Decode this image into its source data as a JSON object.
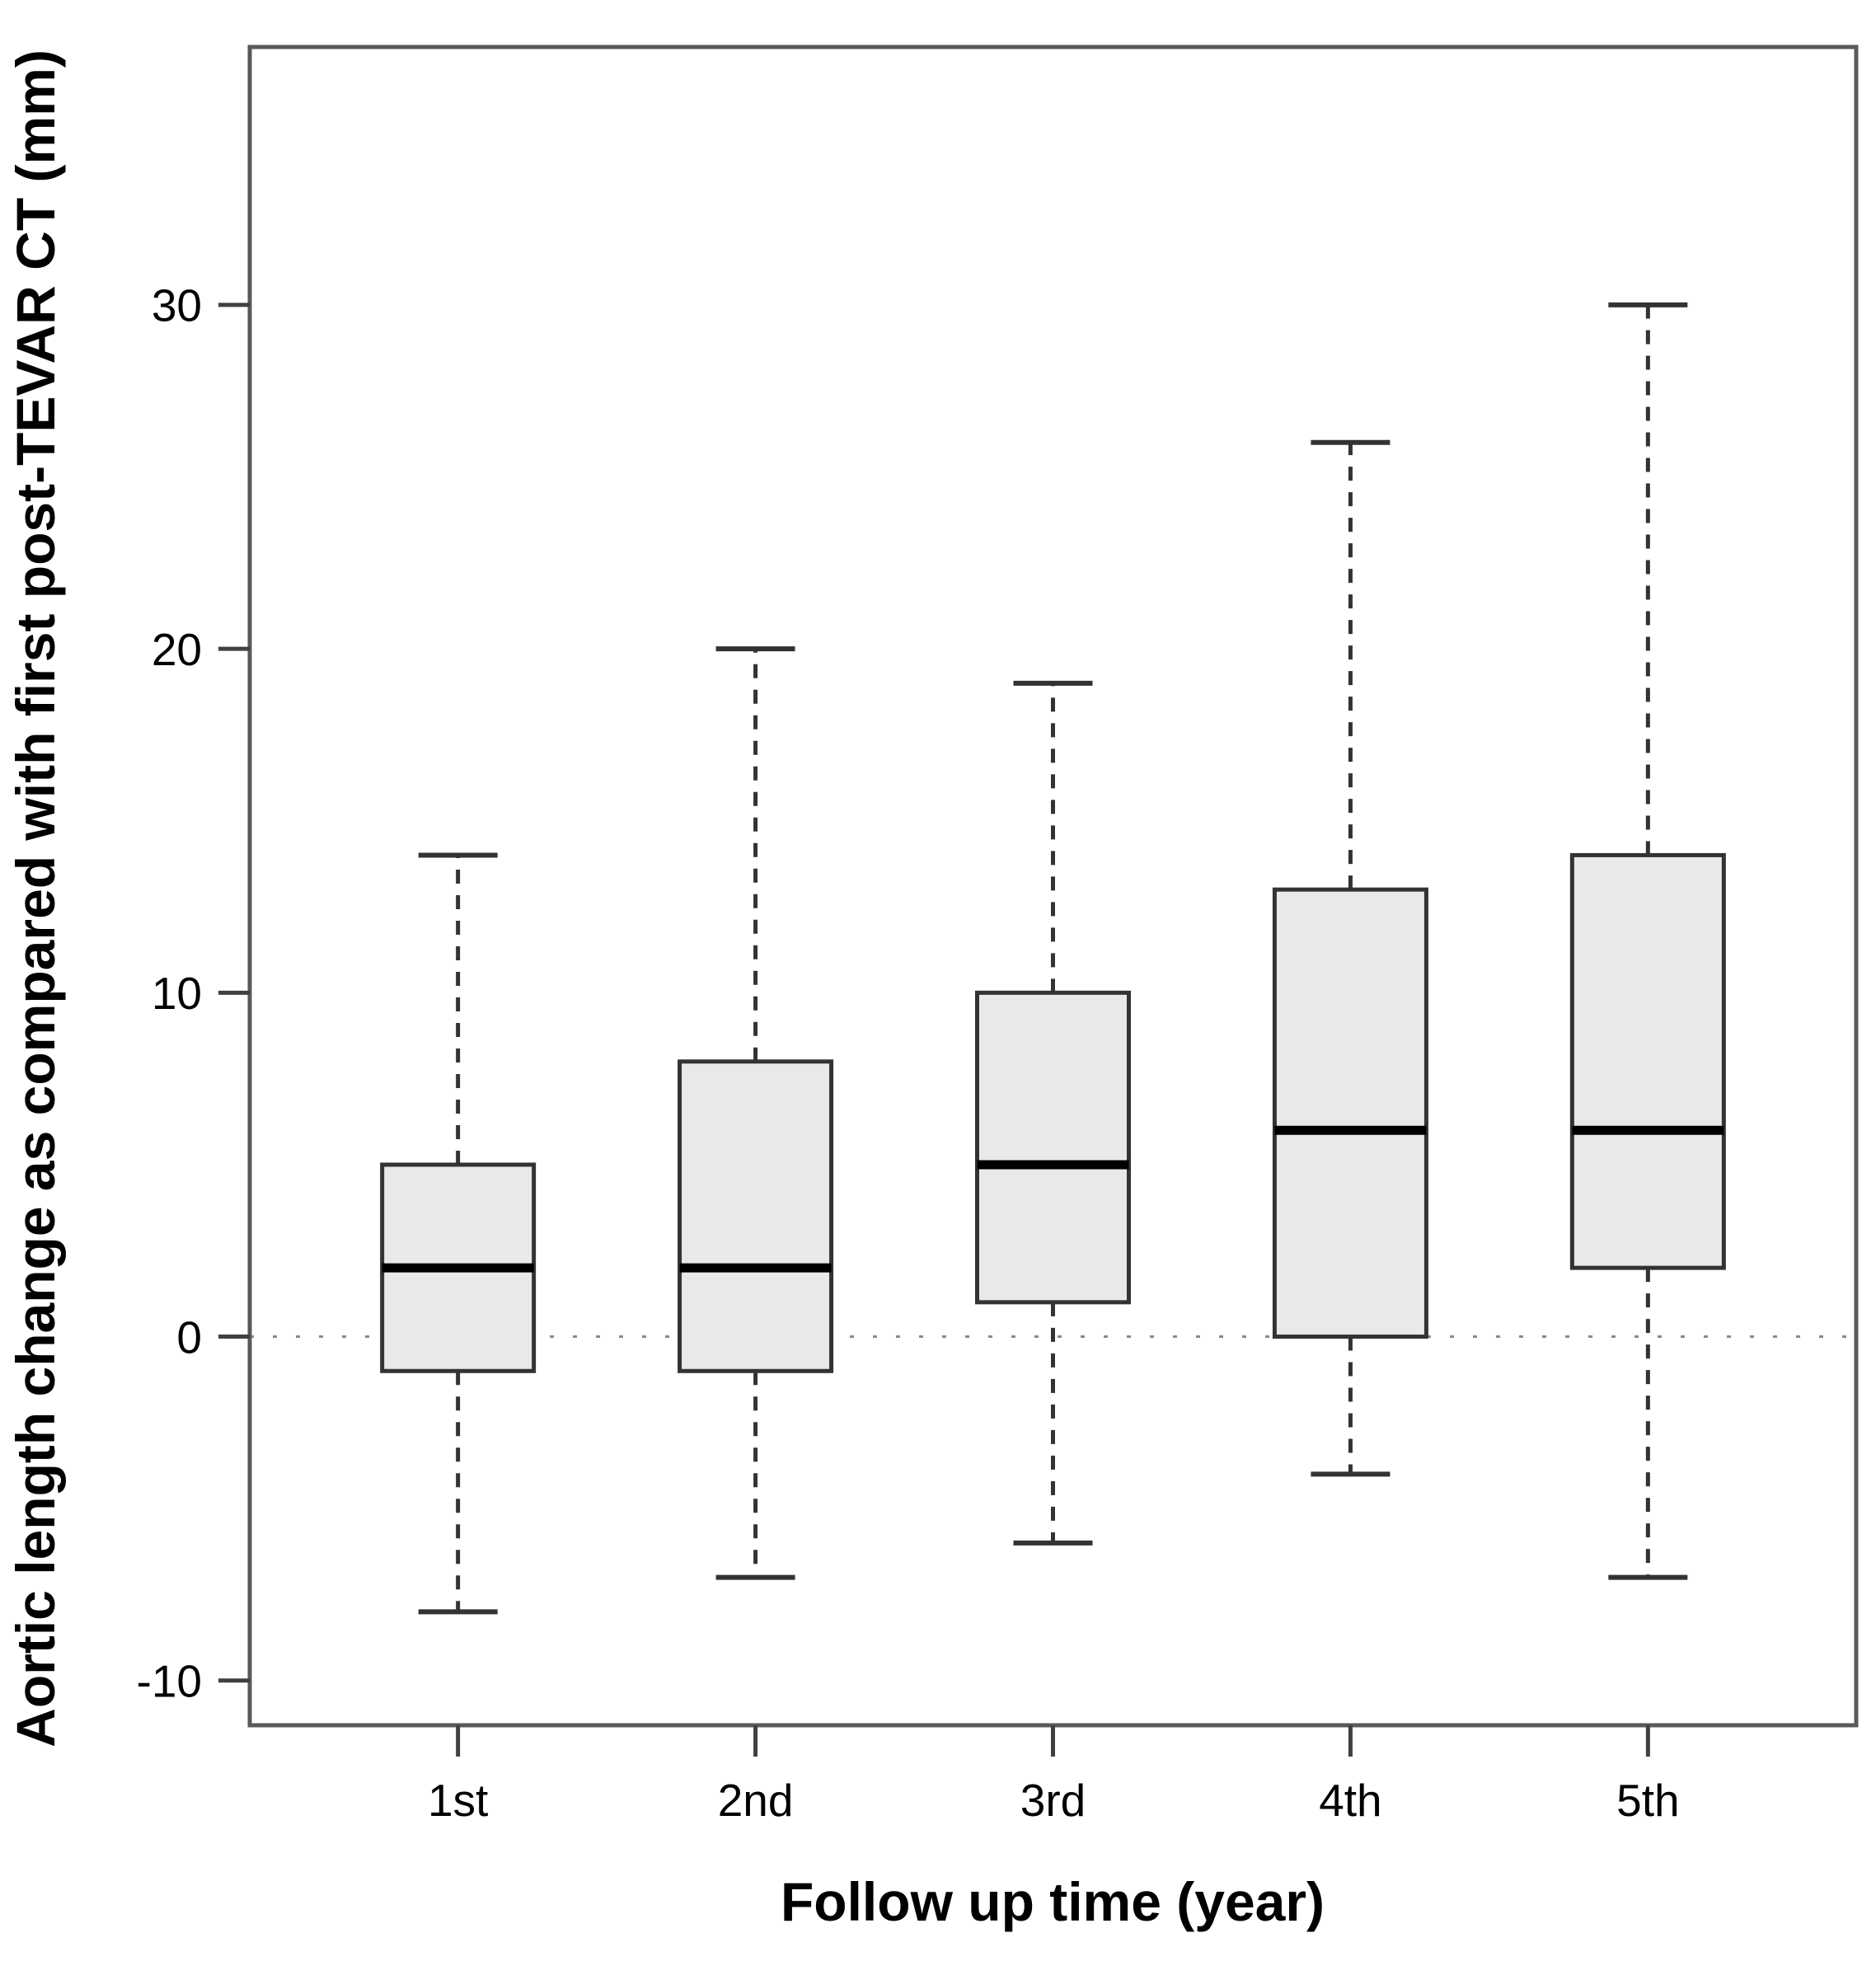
{
  "chart_data": {
    "type": "boxplot",
    "title": "",
    "xlabel": "Follow up time (year)",
    "ylabel": "Aortic length change as compared with first post-TEVAR CT (mm)",
    "categories": [
      "1st",
      "2nd",
      "3rd",
      "4th",
      "5th"
    ],
    "series": [
      {
        "name": "1st",
        "whisker_low": -8,
        "q1": -1,
        "median": 2,
        "q3": 5,
        "whisker_high": 14
      },
      {
        "name": "2nd",
        "whisker_low": -7,
        "q1": -1,
        "median": 2,
        "q3": 8,
        "whisker_high": 20
      },
      {
        "name": "3rd",
        "whisker_low": -6,
        "q1": 1,
        "median": 5,
        "q3": 10,
        "whisker_high": 19
      },
      {
        "name": "4th",
        "whisker_low": -4,
        "q1": 0,
        "median": 6,
        "q3": 13,
        "whisker_high": 26
      },
      {
        "name": "5th",
        "whisker_low": -7,
        "q1": 2,
        "median": 6,
        "q3": 14,
        "whisker_high": 30
      }
    ],
    "yticks": [
      -10,
      0,
      10,
      20,
      30
    ],
    "ylim": [
      -11.3,
      37.5
    ],
    "xlim": [
      0.3,
      5.7
    ],
    "x_positions": [
      1,
      2,
      3,
      4,
      5
    ],
    "reference_line_y": 0,
    "grid": "off",
    "legend": "none",
    "colors": {
      "box_fill": "#e9e9e9",
      "box_border": "#333333",
      "median": "#000000",
      "whisker": "#333333",
      "frame": "#595959",
      "tick": "#404040",
      "reference_line": "#8a8a8a",
      "text": "#000000"
    }
  }
}
